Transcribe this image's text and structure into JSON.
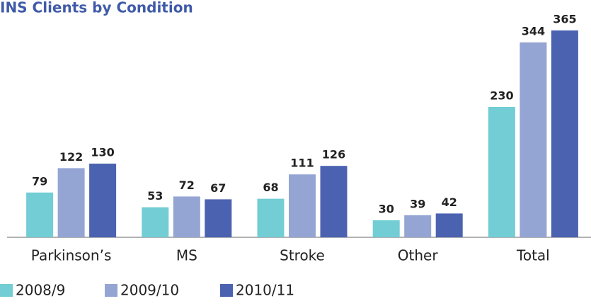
{
  "chart_data": {
    "type": "bar",
    "title": "INS Clients by Condition",
    "categories": [
      "Parkinson’s",
      "MS",
      "Stroke",
      "Other",
      "Total"
    ],
    "series": [
      {
        "name": "2008/9",
        "color": "#72cdd4",
        "values": [
          79,
          53,
          68,
          30,
          230
        ]
      },
      {
        "name": "2009/10",
        "color": "#94a5d4",
        "values": [
          122,
          72,
          111,
          39,
          344
        ]
      },
      {
        "name": "2010/11",
        "color": "#4a62b0",
        "values": [
          130,
          67,
          126,
          42,
          365
        ]
      }
    ],
    "legend": "bottom-left"
  }
}
